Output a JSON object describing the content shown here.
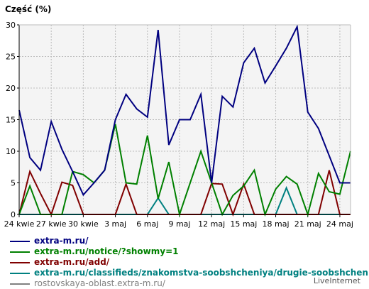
{
  "chart_data": {
    "type": "line",
    "ylabel": "Część (%)",
    "ylim": [
      0,
      30
    ],
    "yticks": [
      0,
      5,
      10,
      15,
      20,
      25,
      30
    ],
    "grid": true,
    "x": [
      "24 kwie",
      "25 kwie",
      "26 kwie",
      "27 kwie",
      "28 kwie",
      "29 kwie",
      "30 kwie",
      "1 maj",
      "2 maj",
      "3 maj",
      "4 maj",
      "5 maj",
      "6 maj",
      "7 maj",
      "8 maj",
      "9 maj",
      "10 maj",
      "11 maj",
      "12 maj",
      "13 maj",
      "14 maj",
      "15 maj",
      "16 maj",
      "17 maj",
      "18 maj",
      "19 maj",
      "20 maj",
      "21 maj",
      "22 maj",
      "23 maj",
      "24 maj",
      "25 maj"
    ],
    "xtick_labels": [
      "24 kwie",
      "27 kwie",
      "30 kwie",
      "3 maj",
      "6 maj",
      "9 maj",
      "12 maj",
      "15 maj",
      "18 maj",
      "21 maj",
      "24 maj"
    ],
    "series": [
      {
        "name": "extra-m.ru/",
        "color": "#000080",
        "values": [
          16.5,
          9.0,
          7.0,
          14.7,
          10.3,
          6.8,
          3.1,
          5.0,
          7.0,
          15.0,
          19.0,
          16.7,
          15.4,
          29.2,
          11.0,
          15.0,
          15.0,
          19.0,
          5.0,
          18.7,
          17.0,
          24.0,
          26.3,
          20.8,
          23.5,
          26.3,
          29.7,
          16.2,
          13.6,
          9.3,
          5.0,
          5.0
        ]
      },
      {
        "name": "extra-m.ru/notice/?showmy=1",
        "color": "#008000",
        "values": [
          0,
          4.5,
          0,
          0,
          0,
          6.8,
          6.3,
          5.0,
          7.0,
          14.3,
          5.0,
          4.8,
          12.5,
          2.5,
          8.3,
          0,
          5.0,
          10.0,
          5.0,
          0,
          3.0,
          4.5,
          7.0,
          0,
          4.0,
          6.0,
          4.8,
          0,
          6.5,
          3.6,
          3.2,
          10.0
        ]
      },
      {
        "name": "extra-m.ru/add/",
        "color": "#800000",
        "values": [
          0,
          6.8,
          3.3,
          0,
          5.1,
          4.6,
          0,
          0,
          0,
          0,
          4.8,
          0,
          0,
          0,
          0,
          0,
          0,
          0,
          4.9,
          4.8,
          0,
          4.8,
          0,
          0,
          0,
          0,
          0,
          0,
          0,
          7.0,
          0,
          0
        ]
      },
      {
        "name": "extra-m.ru/classifieds/znakomstva-soobshcheniya/drugie-soobshcheniya/",
        "color": "#008080",
        "values": [
          0,
          0,
          0,
          0,
          0,
          0,
          0,
          0,
          0,
          0,
          0,
          0,
          0,
          2.6,
          0,
          0,
          0,
          0,
          0,
          0,
          0,
          0,
          0,
          0,
          0,
          4.2,
          0,
          0,
          0,
          0,
          0,
          0
        ]
      },
      {
        "name": "rostovskaya-oblast.extra-m.ru/",
        "color": "#808080",
        "values": [
          0,
          0,
          0,
          0,
          0,
          0,
          0,
          0,
          0,
          0,
          0,
          0,
          0,
          0,
          0,
          0,
          0,
          0,
          0,
          0,
          0,
          0,
          0,
          0,
          0,
          0,
          0,
          0,
          0,
          0,
          0,
          0
        ]
      }
    ]
  },
  "credit": "LiveInternet"
}
